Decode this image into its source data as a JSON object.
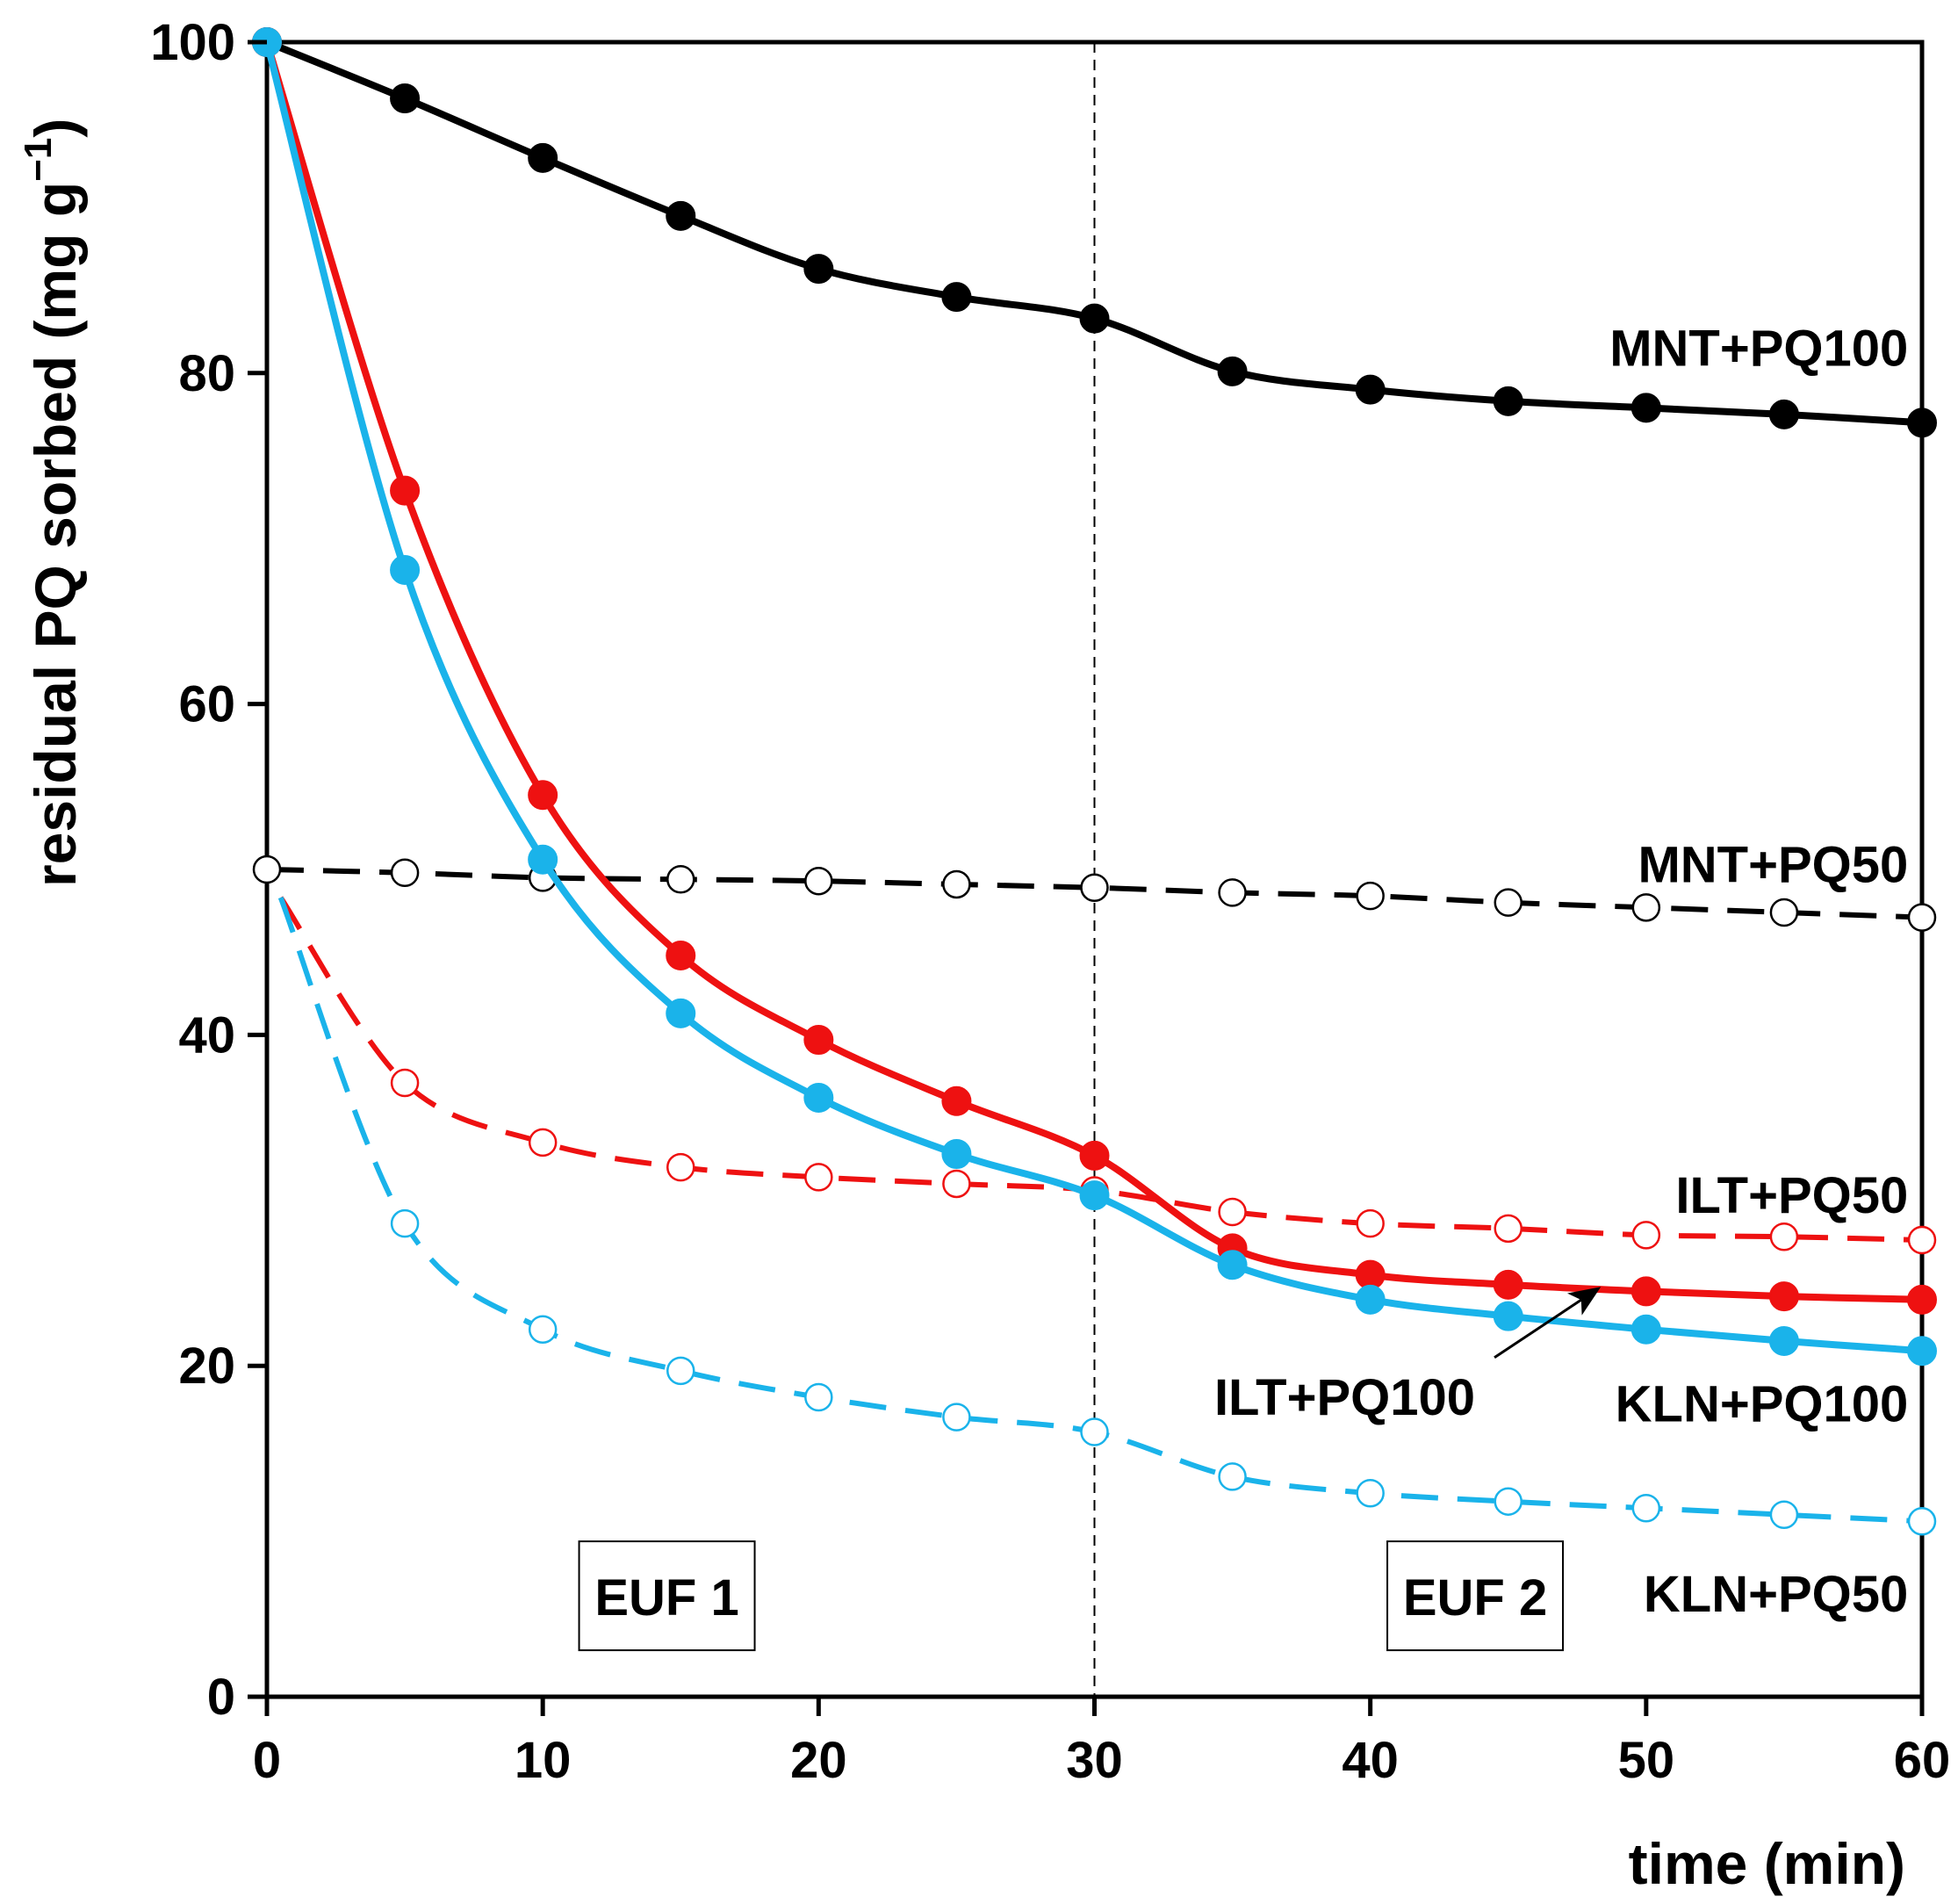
{
  "chart_data": {
    "type": "line",
    "title": "",
    "xlabel": "time (min)",
    "ylabel_main": "residual PQ sorbed (mg g",
    "ylabel_sup": "−1",
    "ylabel_close": ")",
    "xlim": [
      0,
      60
    ],
    "ylim": [
      0,
      100
    ],
    "xticks": [
      0,
      10,
      20,
      30,
      40,
      50,
      60
    ],
    "yticks": [
      0,
      20,
      40,
      60,
      80,
      100
    ],
    "grid": false,
    "reference_line": {
      "x": 30,
      "style": "dashed"
    },
    "region_labels": [
      {
        "text": "EUF 1",
        "x_center": 14.5,
        "y_center": 6.1
      },
      {
        "text": "EUF 2",
        "x_center": 43.8,
        "y_center": 6.1
      }
    ],
    "x": [
      0,
      5,
      10,
      15,
      20,
      25,
      30,
      35,
      40,
      45,
      50,
      55,
      60
    ],
    "series": [
      {
        "name": "MNT+PQ100",
        "color": "#000000",
        "line": "solid",
        "marker": "filled",
        "values": [
          100,
          96.6,
          93.0,
          89.5,
          86.3,
          84.6,
          83.3,
          80.1,
          79.0,
          78.3,
          77.9,
          77.5,
          77.0
        ]
      },
      {
        "name": "MNT+PQ50",
        "color": "#000000",
        "line": "dashed",
        "marker": "open",
        "values": [
          50.0,
          49.8,
          49.5,
          49.4,
          49.3,
          49.1,
          48.9,
          48.6,
          48.4,
          48.0,
          47.7,
          47.4,
          47.1
        ]
      },
      {
        "name": "ILT+PQ100",
        "color": "#ee1111",
        "line": "solid",
        "marker": "filled",
        "values": [
          100,
          72.9,
          54.5,
          44.8,
          39.7,
          36.0,
          32.7,
          27.1,
          25.5,
          24.9,
          24.5,
          24.2,
          24.0
        ]
      },
      {
        "name": "ILT+PQ50",
        "color": "#ee1111",
        "line": "dashed",
        "marker": "open",
        "values": [
          null,
          37.1,
          33.5,
          32.0,
          31.4,
          31.0,
          30.6,
          29.3,
          28.6,
          28.3,
          27.9,
          27.8,
          27.6
        ]
      },
      {
        "name": "KLN+PQ100",
        "color": "#1ab3ea",
        "line": "solid",
        "marker": "filled",
        "values": [
          100,
          68.1,
          50.6,
          41.3,
          36.2,
          32.8,
          30.3,
          26.1,
          24.0,
          23.0,
          22.2,
          21.5,
          20.9
        ]
      },
      {
        "name": "KLN+PQ50",
        "color": "#1ab3ea",
        "line": "dashed",
        "marker": "open",
        "values": [
          null,
          28.6,
          22.2,
          19.7,
          18.1,
          16.9,
          16.0,
          13.3,
          12.3,
          11.8,
          11.4,
          11.0,
          10.6
        ]
      }
    ],
    "series_labels": [
      {
        "text": "MNT+PQ100",
        "x_right": 59.5,
        "y": 81.5
      },
      {
        "text": "MNT+PQ50",
        "x_right": 59.5,
        "y": 50.3
      },
      {
        "text": "ILT+PQ50",
        "x_right": 59.5,
        "y": 30.3
      },
      {
        "text": "ILT+PQ100",
        "x_right": 43.8,
        "y": 18.1
      },
      {
        "text": "KLN+PQ100",
        "x_right": 59.5,
        "y": 17.7
      },
      {
        "text": "KLN+PQ50",
        "x_right": 59.5,
        "y": 6.2
      }
    ],
    "arrow": {
      "from": [
        44.5,
        20.5
      ],
      "to": [
        48.2,
        24.6
      ],
      "label": "ILT+PQ100"
    }
  }
}
